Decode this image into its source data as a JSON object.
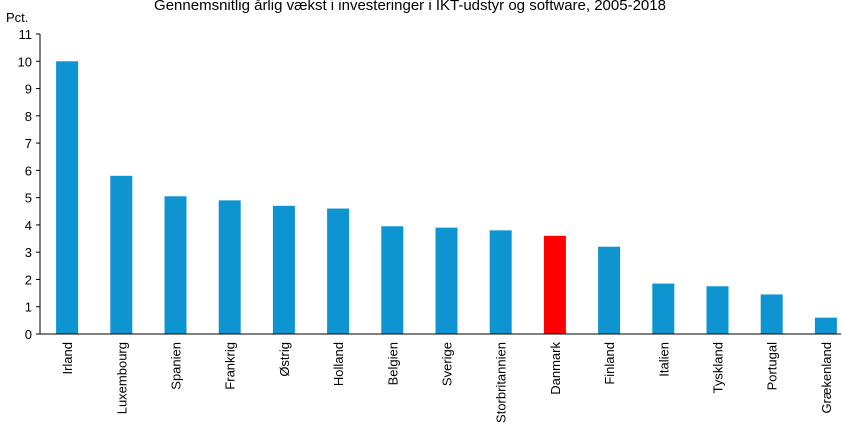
{
  "chart_data": {
    "type": "bar",
    "title": "Gennemsnitlig årlig vækst i investeringer i IKT-udstyr og software, 2005-2018",
    "y_label": "Pct.",
    "categories": [
      "Irland",
      "Luxembourg",
      "Spanien",
      "Frankrig",
      "Østrig",
      "Holland",
      "Belgien",
      "Sverige",
      "Storbritannien",
      "Danmark",
      "Finland",
      "Italien",
      "Tyskland",
      "Portugal",
      "Grækenland"
    ],
    "values": [
      10,
      5.8,
      5.05,
      4.9,
      4.7,
      4.6,
      3.95,
      3.9,
      3.8,
      3.6,
      3.2,
      1.85,
      1.75,
      1.45,
      0.6
    ],
    "colors": [
      "#0f94d2",
      "#0f94d2",
      "#0f94d2",
      "#0f94d2",
      "#0f94d2",
      "#0f94d2",
      "#0f94d2",
      "#0f94d2",
      "#0f94d2",
      "#ff0000",
      "#0f94d2",
      "#0f94d2",
      "#0f94d2",
      "#0f94d2",
      "#0f94d2"
    ],
    "ylim": [
      0,
      11
    ],
    "yticks": [
      0,
      1,
      2,
      3,
      4,
      5,
      6,
      7,
      8,
      9,
      10,
      11
    ],
    "grid": false
  }
}
